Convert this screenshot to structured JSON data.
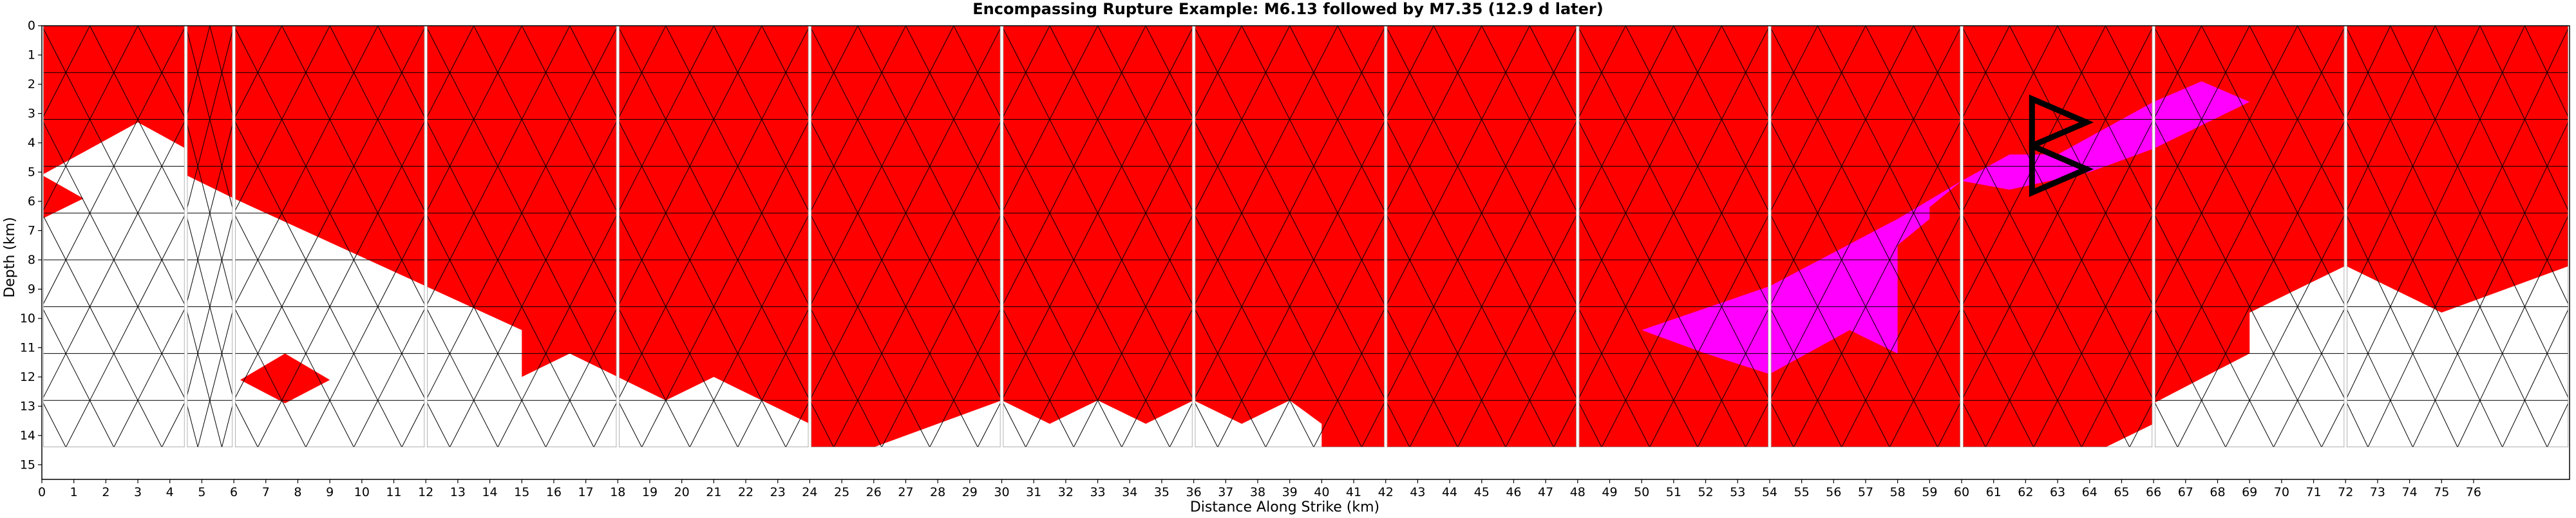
{
  "chart_data": {
    "type": "heatmap",
    "title": "Encompassing Rupture Example: M6.13 followed by M7.35 (12.9 d later)",
    "xlabel": "Distance Along Strike (km)",
    "ylabel": "Depth (km)",
    "xlim": [
      0,
      79
    ],
    "ylim": [
      15.5,
      0
    ],
    "x_ticks": [
      0,
      1,
      2,
      3,
      4,
      5,
      6,
      7,
      8,
      9,
      10,
      11,
      12,
      13,
      14,
      15,
      16,
      17,
      18,
      19,
      20,
      21,
      22,
      23,
      24,
      25,
      26,
      27,
      28,
      29,
      30,
      31,
      32,
      33,
      34,
      35,
      36,
      37,
      38,
      39,
      40,
      41,
      42,
      43,
      44,
      45,
      46,
      47,
      48,
      49,
      50,
      51,
      52,
      53,
      54,
      55,
      56,
      57,
      58,
      59,
      60,
      61,
      62,
      63,
      64,
      65,
      66,
      67,
      68,
      69,
      70,
      71,
      72,
      73,
      74,
      75,
      76
    ],
    "y_ticks": [
      0,
      1,
      2,
      3,
      4,
      5,
      6,
      7,
      8,
      9,
      10,
      11,
      12,
      13,
      14,
      15
    ],
    "grid": false,
    "colors": {
      "background_rupture": "#ff0000",
      "second_rupture": "#ff00ff",
      "unruptured": "#ffffff",
      "mesh_line": "#000000",
      "mesh_line_unruptured": "#9a9a9a",
      "hypocenter_marker": "#000000"
    },
    "panels": [
      {
        "x0": 0,
        "x1": 4.5,
        "red_floor": [
          [
            0,
            5.1
          ],
          [
            3,
            3.3
          ],
          [
            4.5,
            4.2
          ]
        ],
        "islands": [
          [
            [
              0,
              5.1
            ],
            [
              1.3,
              5.9
            ],
            [
              0,
              6.6
            ]
          ]
        ]
      },
      {
        "x0": 4.5,
        "x1": 6,
        "red_floor": [
          [
            4.5,
            5.1
          ],
          [
            6,
            5.9
          ]
        ]
      },
      {
        "x0": 6,
        "x1": 12,
        "red_floor": [
          [
            6,
            5.9
          ],
          [
            12,
            8.9
          ]
        ],
        "islands": [
          [
            [
              6.2,
              12.1
            ],
            [
              7.6,
              11.2
            ],
            [
              9,
              12.1
            ],
            [
              7.6,
              12.9
            ]
          ]
        ]
      },
      {
        "x0": 12,
        "x1": 18,
        "red_floor": [
          [
            12,
            8.9
          ],
          [
            15,
            10.4
          ],
          [
            15,
            12
          ],
          [
            16.5,
            11.2
          ],
          [
            18,
            12
          ]
        ]
      },
      {
        "x0": 18,
        "x1": 24,
        "red_floor": [
          [
            18,
            12
          ],
          [
            19.5,
            12.8
          ],
          [
            21,
            12
          ],
          [
            24,
            13.6
          ]
        ]
      },
      {
        "x0": 24,
        "x1": 30,
        "red_floor": [
          [
            24,
            14.4
          ],
          [
            26,
            14.4
          ],
          [
            30,
            12.8
          ]
        ]
      },
      {
        "x0": 30,
        "x1": 36,
        "red_floor": [
          [
            30,
            12.8
          ],
          [
            31.5,
            13.6
          ],
          [
            33,
            12.8
          ],
          [
            34.5,
            13.6
          ],
          [
            36,
            12.8
          ]
        ]
      },
      {
        "x0": 36,
        "x1": 42,
        "red_floor": [
          [
            36,
            12.8
          ],
          [
            37.5,
            13.6
          ],
          [
            39,
            12.8
          ],
          [
            40,
            13.6
          ],
          [
            40,
            14.4
          ],
          [
            41.4,
            14.4
          ]
        ]
      },
      {
        "x0": 42,
        "x1": 48,
        "red_floor": [
          [
            42,
            14.4
          ],
          [
            48,
            14.4
          ]
        ]
      },
      {
        "x0": 48,
        "x1": 54,
        "red_floor": [
          [
            48,
            14.4
          ],
          [
            54,
            14.4
          ]
        ]
      },
      {
        "x0": 54,
        "x1": 60,
        "red_floor": [
          [
            54,
            14.4
          ],
          [
            60,
            14.4
          ]
        ]
      },
      {
        "x0": 60,
        "x1": 66,
        "red_floor": [
          [
            60,
            14.4
          ],
          [
            64.5,
            14.4
          ],
          [
            66,
            13.6
          ]
        ]
      },
      {
        "x0": 66,
        "x1": 72,
        "red_floor": [
          [
            66,
            13.6
          ],
          [
            66,
            12.9
          ],
          [
            69,
            11.2
          ],
          [
            69,
            9.8
          ],
          [
            72,
            8.2
          ]
        ]
      },
      {
        "x0": 72,
        "x1": 79,
        "red_floor": [
          [
            72,
            8.2
          ],
          [
            75,
            9.8
          ],
          [
            79,
            8.2
          ]
        ]
      }
    ],
    "second_rupture_polygon": [
      [
        50,
        10.4
      ],
      [
        54,
        8.9
      ],
      [
        58,
        6.6
      ],
      [
        60,
        5.3
      ],
      [
        61.5,
        4.4
      ],
      [
        63,
        4.4
      ],
      [
        66,
        2.6
      ],
      [
        67.5,
        1.9
      ],
      [
        69,
        2.6
      ],
      [
        66,
        4.2
      ],
      [
        64,
        5
      ],
      [
        61.5,
        5.6
      ],
      [
        60,
        5.3
      ],
      [
        59,
        6.2
      ],
      [
        59,
        6.6
      ],
      [
        58,
        7.5
      ],
      [
        58,
        11.2
      ],
      [
        56.5,
        10.4
      ],
      [
        54,
        11.9
      ],
      [
        52,
        11.2
      ]
    ],
    "hypocenter_triangles": [
      [
        [
          62.2,
          2.5
        ],
        [
          62.2,
          4.1
        ],
        [
          63.9,
          3.3
        ]
      ],
      [
        [
          62.2,
          4.1
        ],
        [
          62.2,
          5.7
        ],
        [
          63.9,
          4.9
        ]
      ]
    ]
  }
}
